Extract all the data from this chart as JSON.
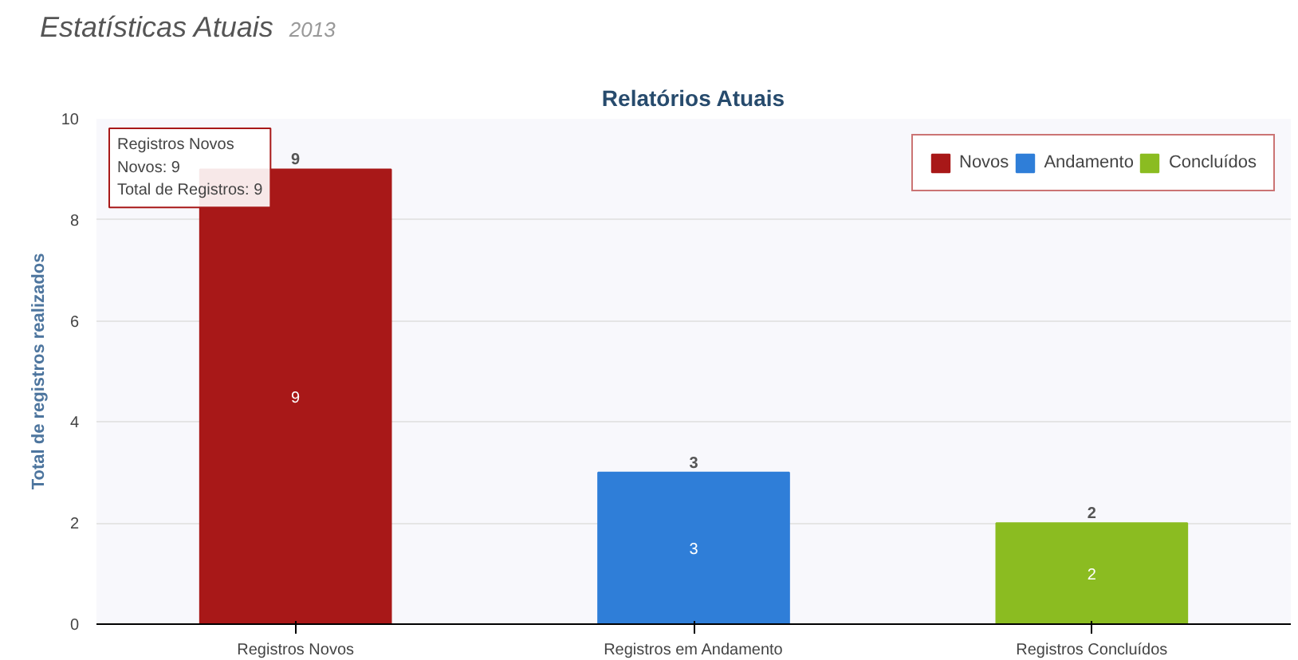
{
  "chart_data": {
    "type": "bar",
    "title": "Relatórios Atuais",
    "ylabel": "Total de registros realizados",
    "categories": [
      "Registros Novos",
      "Registros em Andamento",
      "Registros Concluídos"
    ],
    "series": [
      {
        "name": "Novos",
        "color": "#a81818",
        "values": [
          9,
          null,
          null
        ],
        "value_labels": [
          "9",
          null,
          null
        ]
      },
      {
        "name": "Andamento",
        "color": "#2f7ed8",
        "values": [
          null,
          3,
          null
        ],
        "value_labels": [
          null,
          "3",
          null
        ]
      },
      {
        "name": "Concluídos",
        "color": "#8bbc21",
        "values": [
          null,
          null,
          2
        ],
        "value_labels": [
          null,
          null,
          "2"
        ]
      }
    ],
    "ylim": [
      0,
      10
    ],
    "yticks": [
      0,
      2,
      4,
      6,
      8,
      10
    ],
    "grid": "y",
    "legend": "top right",
    "totals": [
      "9",
      "3",
      "2"
    ],
    "annotations": [
      "Estatísticas Atuais",
      "2013",
      "Registros Novos\nNovos: 9\nTotal de Registros: 9"
    ]
  }
}
